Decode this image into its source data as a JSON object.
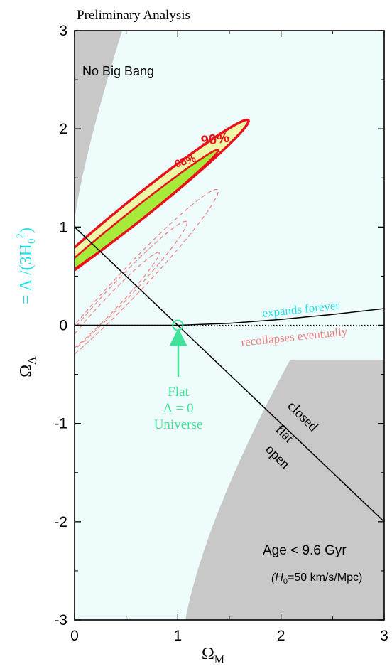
{
  "chart_data": {
    "type": "line",
    "title": "Preliminary Analysis",
    "xlabel": {
      "main": "Ω",
      "sub": "M"
    },
    "ylabel": {
      "main": "Ω",
      "sub": "Λ",
      "formula": "= Λ /(3H",
      "formula_sub": "0",
      "formula_sup": "2",
      "formula_end": ")"
    },
    "xlim": [
      0,
      3
    ],
    "ylim": [
      -3,
      3
    ],
    "xticks": [
      0,
      1,
      2,
      3
    ],
    "yticks": [
      -3,
      -2,
      -1,
      0,
      1,
      2,
      3
    ],
    "grid": false,
    "colors": {
      "background_region": "#effcfc",
      "excluded_region": "#c8c8c8",
      "confidence_fill_68": "#a6ea3a",
      "confidence_fill_90": "#ecf8a8",
      "confidence_line": "#e8111a",
      "dashed_contours": "#f08080",
      "flat_marker": "#3ee49a",
      "expands_text": "#22e0e8",
      "ylabel_formula": "#22e0e8"
    },
    "regions": [
      {
        "name": "No Big Bang",
        "label": "No Big Bang"
      },
      {
        "name": "Age < 9.6 Gyr",
        "label": "Age < 9.6 Gyr",
        "sublabel_pre": "(H",
        "sublabel_sub": "0",
        "sublabel_post": "=50 km/s/Mpc)"
      }
    ],
    "confidence_contours": [
      {
        "level": "90%",
        "label": "90%",
        "center": [
          0.65,
          1.22
        ],
        "semi_major": 1.35,
        "semi_minor": 0.11,
        "angle_deg": 40
      },
      {
        "level": "68%",
        "label": "68%",
        "center": [
          0.55,
          1.08
        ],
        "semi_major": 1.1,
        "semi_minor": 0.065,
        "angle_deg": 40
      }
    ],
    "dashed_contours": [
      {
        "center": [
          0.55,
          0.45
        ],
        "semi_major": 1.25,
        "semi_minor": 0.13,
        "angle_deg": 48
      },
      {
        "center": [
          0.45,
          0.35
        ],
        "semi_major": 0.95,
        "semi_minor": 0.1,
        "angle_deg": 48
      },
      {
        "center": [
          0.35,
          0.22
        ],
        "semi_major": 0.7,
        "semi_minor": 0.07,
        "angle_deg": 48
      }
    ],
    "lines": [
      {
        "name": "flat",
        "x": [
          0,
          3
        ],
        "y": [
          1,
          -2
        ],
        "style": "solid"
      },
      {
        "name": "expands forever boundary",
        "x": [
          0,
          1,
          1.5,
          2,
          2.5,
          3
        ],
        "y": [
          0,
          0,
          0.02,
          0.06,
          0.11,
          0.17
        ],
        "style": "solid"
      },
      {
        "name": "Lambda zero",
        "x": [
          0,
          3
        ],
        "y": [
          0,
          0
        ],
        "style": "dotted"
      }
    ],
    "annotations": {
      "expands": "expands forever",
      "recollapses": "recollapses eventually",
      "closed": "closed",
      "flat": "flat",
      "open": "open",
      "flat_universe": [
        "Flat",
        "Λ = 0",
        "Universe"
      ],
      "flat_universe_point": [
        1,
        0
      ]
    }
  }
}
